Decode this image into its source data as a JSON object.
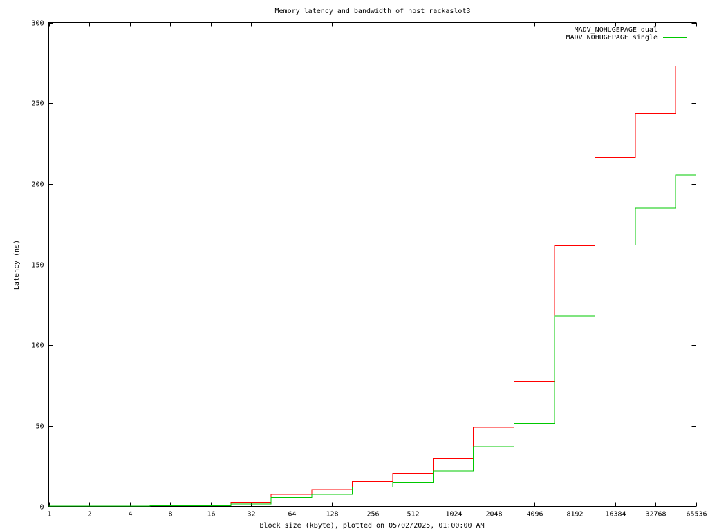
{
  "chart_data": {
    "type": "line",
    "title": "Memory latency and bandwidth of host rackaslot3",
    "xlabel": "Block size (kByte), plotted on 05/02/2025, 01:00:00 AM",
    "ylabel": "Latency (ns)",
    "x_scale": "log2",
    "xlim": [
      1,
      65536
    ],
    "ylim": [
      0,
      300
    ],
    "x_ticks": [
      1,
      2,
      4,
      8,
      16,
      32,
      64,
      128,
      256,
      512,
      1024,
      2048,
      4096,
      8192,
      16384,
      32768,
      65536
    ],
    "x_tick_labels": [
      "1",
      "2",
      "4",
      "8",
      "16",
      "32",
      "64",
      "128",
      "256",
      "512",
      "1024",
      "2048",
      "4096",
      "8192",
      "16384",
      "32768",
      "65536"
    ],
    "y_ticks": [
      0,
      50,
      100,
      150,
      200,
      250,
      300
    ],
    "y_tick_labels": [
      "0",
      "50",
      "100",
      "150",
      "200",
      "250",
      "300"
    ],
    "grid": false,
    "legend_position": "top-right",
    "style": "step",
    "series": [
      {
        "name": "MADV_NOHUGEPAGE dual",
        "color": "#ff0000",
        "x": [
          1,
          1.41,
          5.66,
          11.31,
          22.63,
          45.25,
          90.51,
          181.02,
          362.04,
          724.08,
          1448.15,
          2896.31,
          5792.62,
          11585.24,
          23170.48,
          46340.95,
          65536
        ],
        "y": [
          0.3,
          0.3,
          0.5,
          0.6,
          2.5,
          7.5,
          10.5,
          15.5,
          20.5,
          29.5,
          49,
          77.5,
          161.5,
          216.5,
          243.5,
          273,
          273
        ]
      },
      {
        "name": "MADV_NOHUGEPAGE single",
        "color": "#00c800",
        "x": [
          1,
          1.41,
          5.66,
          11.31,
          22.63,
          45.25,
          90.51,
          181.02,
          362.04,
          724.08,
          1448.15,
          2896.31,
          5792.62,
          11585.24,
          23170.48,
          46340.95,
          65536
        ],
        "y": [
          0.3,
          0.3,
          0.4,
          0.5,
          1.5,
          5.5,
          7.5,
          12,
          15,
          22,
          37,
          51.5,
          118,
          162,
          185,
          205.5,
          205.5
        ]
      }
    ]
  }
}
